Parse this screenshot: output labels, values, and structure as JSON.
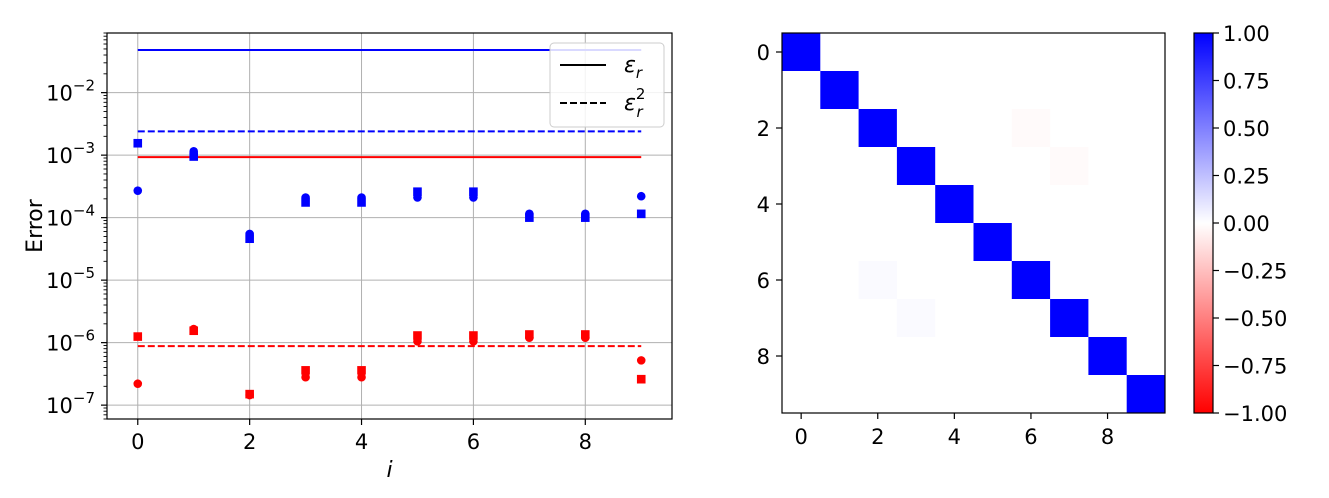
{
  "chart_data": [
    {
      "type": "scatter",
      "xlabel": "i",
      "ylabel": "Error",
      "yscale": "log",
      "xlim": [
        -0.55,
        9.55
      ],
      "ylim": [
        6e-08,
        0.09
      ],
      "x_ticks": [
        0,
        2,
        4,
        6,
        8
      ],
      "y_ticks": [
        {
          "value": 1e-07,
          "label": "10",
          "exp": "−7"
        },
        {
          "value": 1e-06,
          "label": "10",
          "exp": "−6"
        },
        {
          "value": 1e-05,
          "label": "10",
          "exp": "−5"
        },
        {
          "value": 0.0001,
          "label": "10",
          "exp": "−4"
        },
        {
          "value": 0.001,
          "label": "10",
          "exp": "−3"
        },
        {
          "value": 0.01,
          "label": "10",
          "exp": "−2"
        }
      ],
      "grid": true,
      "legend": {
        "placement": "top-right",
        "entries": [
          {
            "label": "ε",
            "sub": "r",
            "sup": "",
            "style": "solid"
          },
          {
            "label": "ε",
            "sub": "r",
            "sup": "2",
            "style": "dashed"
          }
        ]
      },
      "colors": {
        "blue": "#0000ff",
        "red": "#ff0000",
        "grid": "#b0b0b0"
      },
      "hlines": [
        {
          "color": "blue",
          "style": "solid",
          "y": 0.048,
          "x_range": [
            0,
            9
          ]
        },
        {
          "color": "blue",
          "style": "dashed",
          "y": 0.0024,
          "x_range": [
            0,
            9
          ]
        },
        {
          "color": "red",
          "style": "solid",
          "y": 0.00093,
          "x_range": [
            0,
            9
          ]
        },
        {
          "color": "red",
          "style": "dashed",
          "y": 8.8e-07,
          "x_range": [
            0,
            9
          ]
        }
      ],
      "series": [
        {
          "color": "blue",
          "marker": "circle",
          "x": [
            0,
            1,
            2,
            3,
            4,
            5,
            6,
            7,
            8,
            9
          ],
          "y": [
            0.00027,
            0.00115,
            5.5e-05,
            0.00021,
            0.00021,
            0.00021,
            0.00021,
            0.000115,
            0.000115,
            0.00022
          ]
        },
        {
          "color": "blue",
          "marker": "square",
          "x": [
            0,
            1,
            2,
            3,
            4,
            5,
            6,
            7,
            8,
            9
          ],
          "y": [
            0.00155,
            0.00095,
            4.6e-05,
            0.000175,
            0.000175,
            0.00026,
            0.00026,
            0.0001,
            0.0001,
            0.000115
          ]
        },
        {
          "color": "red",
          "marker": "circle",
          "x": [
            0,
            1,
            2,
            3,
            4,
            5,
            6,
            7,
            8,
            9
          ],
          "y": [
            2.2e-07,
            1.65e-06,
            1.45e-07,
            2.8e-07,
            2.8e-07,
            1.05e-06,
            1.05e-06,
            1.2e-06,
            1.2e-06,
            5.2e-07
          ]
        },
        {
          "color": "red",
          "marker": "square",
          "x": [
            0,
            1,
            2,
            3,
            4,
            5,
            6,
            7,
            8,
            9
          ],
          "y": [
            1.25e-06,
            1.55e-06,
            1.5e-07,
            3.6e-07,
            3.6e-07,
            1.3e-06,
            1.3e-06,
            1.35e-06,
            1.35e-06,
            2.6e-07
          ]
        }
      ]
    },
    {
      "type": "heatmap",
      "rows": 10,
      "cols": 10,
      "x_ticks": [
        0,
        2,
        4,
        6,
        8
      ],
      "y_ticks": [
        0,
        2,
        4,
        6,
        8
      ],
      "vmin": -1.0,
      "vmax": 1.0,
      "colormap": {
        "low": "#ff0000",
        "mid": "#ffffff",
        "high": "#0000ff"
      },
      "colorbar_ticks": [
        "1.00",
        "0.75",
        "0.50",
        "0.25",
        "0.00",
        "−0.25",
        "−0.50",
        "−0.75",
        "−1.00"
      ],
      "colorbar_values": [
        1.0,
        0.75,
        0.5,
        0.25,
        0.0,
        -0.25,
        -0.5,
        -0.75,
        -1.0
      ],
      "diagonal_value": 1.0,
      "off_diagonal": [
        {
          "row": 2,
          "col": 6,
          "value": -0.02
        },
        {
          "row": 3,
          "col": 7,
          "value": -0.02
        },
        {
          "row": 6,
          "col": 2,
          "value": 0.02
        },
        {
          "row": 7,
          "col": 3,
          "value": 0.02
        }
      ]
    }
  ]
}
